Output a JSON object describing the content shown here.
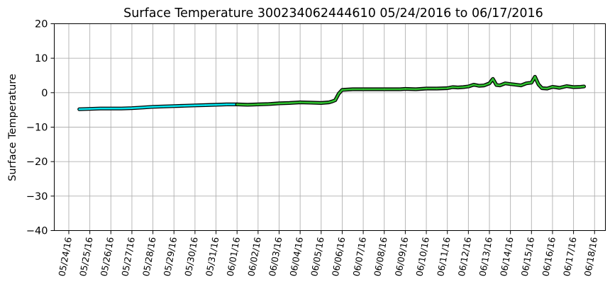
{
  "chart_data": {
    "type": "line",
    "title": "Surface Temperature 300234062444610  05/24/2016 to 06/17/2016",
    "xlabel": "",
    "ylabel": "Surface Temperature",
    "ylim": [
      -40,
      20
    ],
    "yticks": [
      20,
      10,
      0,
      -10,
      -20,
      -30,
      -40
    ],
    "xlim": [
      "2016-05-24",
      "2016-06-18"
    ],
    "xtick_labels": [
      "05/24/16",
      "05/25/16",
      "05/26/16",
      "05/27/16",
      "05/28/16",
      "05/29/16",
      "05/30/16",
      "05/31/16",
      "06/01/16",
      "06/02/16",
      "06/03/16",
      "06/04/16",
      "06/05/16",
      "06/06/16",
      "06/07/16",
      "06/08/16",
      "06/09/16",
      "06/10/16",
      "06/11/16",
      "06/12/16",
      "06/13/16",
      "06/14/16",
      "06/15/16",
      "06/16/16",
      "06/17/16",
      "06/18/16"
    ],
    "grid": true,
    "series": [
      {
        "color": "#00e5ee",
        "x": [
          "2016-05-24 12:00",
          "2016-05-25 00:00",
          "2016-05-25 12:00",
          "2016-05-26 00:00",
          "2016-05-26 12:00",
          "2016-05-27 00:00",
          "2016-05-27 12:00",
          "2016-05-28 00:00",
          "2016-05-28 12:00",
          "2016-05-29 00:00",
          "2016-05-29 12:00",
          "2016-05-30 00:00",
          "2016-05-30 12:00",
          "2016-05-31 00:00",
          "2016-05-31 12:00",
          "2016-06-01 00:00"
        ],
        "values": [
          -4.8,
          -4.7,
          -4.6,
          -4.6,
          -4.6,
          -4.5,
          -4.3,
          -4.1,
          -4.0,
          -3.9,
          -3.8,
          -3.7,
          -3.6,
          -3.5,
          -3.4,
          -3.4
        ]
      },
      {
        "color": "#2fbf2f",
        "x": [
          "2016-06-01 00:00",
          "2016-06-01 12:00",
          "2016-06-02 00:00",
          "2016-06-02 12:00",
          "2016-06-03 00:00",
          "2016-06-03 12:00",
          "2016-06-04 00:00",
          "2016-06-04 12:00",
          "2016-06-05 00:00",
          "2016-06-05 09:00",
          "2016-06-05 13:00",
          "2016-06-05 16:00",
          "2016-06-05 20:00",
          "2016-06-06 00:00",
          "2016-06-06 12:00",
          "2016-06-07 00:00",
          "2016-06-08 00:00",
          "2016-06-08 18:00",
          "2016-06-09 00:00",
          "2016-06-09 12:00",
          "2016-06-10 00:00",
          "2016-06-10 12:00",
          "2016-06-11 00:00",
          "2016-06-11 06:00",
          "2016-06-11 12:00",
          "2016-06-11 18:00",
          "2016-06-12 00:00",
          "2016-06-12 06:00",
          "2016-06-12 12:00",
          "2016-06-12 18:00",
          "2016-06-13 00:00",
          "2016-06-13 04:00",
          "2016-06-13 08:00",
          "2016-06-13 12:00",
          "2016-06-13 18:00",
          "2016-06-14 00:00",
          "2016-06-14 06:00",
          "2016-06-14 12:00",
          "2016-06-14 18:00",
          "2016-06-15 00:00",
          "2016-06-15 04:00",
          "2016-06-15 08:00",
          "2016-06-15 12:00",
          "2016-06-15 18:00",
          "2016-06-16 00:00",
          "2016-06-16 08:00",
          "2016-06-16 16:00",
          "2016-06-17 00:00",
          "2016-06-17 08:00",
          "2016-06-17 12:00"
        ],
        "values": [
          -3.4,
          -3.5,
          -3.4,
          -3.3,
          -3.1,
          -3.0,
          -2.8,
          -2.9,
          -3.0,
          -2.8,
          -2.5,
          -2.2,
          -0.3,
          0.8,
          1.0,
          1.0,
          1.0,
          1.0,
          1.1,
          1.0,
          1.2,
          1.2,
          1.3,
          1.6,
          1.5,
          1.6,
          1.8,
          2.3,
          2.0,
          2.1,
          2.7,
          4.0,
          2.2,
          2.1,
          2.7,
          2.5,
          2.3,
          2.1,
          2.7,
          2.9,
          4.6,
          2.4,
          1.3,
          1.2,
          1.7,
          1.4,
          1.9,
          1.6,
          1.7,
          1.8
        ]
      }
    ]
  }
}
